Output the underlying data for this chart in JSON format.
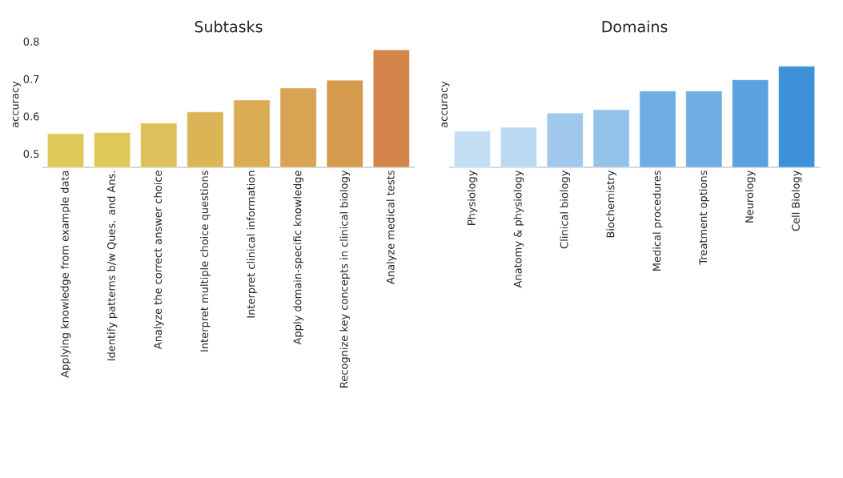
{
  "chart_data": [
    {
      "type": "bar",
      "title": "Subtasks",
      "ylabel": "accuracy",
      "categories": [
        "Applying knowledge from example data",
        "Identify patterns b/w Ques. and Ans.",
        "Analyze the correct answer choice",
        "Interpret multiple choice questions",
        "Interpret clinical information",
        "Apply domain-specific knowledge",
        "Recognize key concepts in clinical biology",
        "Analyze medical tests"
      ],
      "values": [
        0.554,
        0.557,
        0.582,
        0.612,
        0.644,
        0.676,
        0.697,
        0.778
      ],
      "colors": [
        "#e0c858",
        "#e0c858",
        "#ddc059",
        "#dbb555",
        "#daad54",
        "#d8a352",
        "#d69a4e",
        "#d4854b"
      ],
      "ylim": [
        0.464,
        0.8
      ],
      "yticks": [
        0.5,
        0.6,
        0.7,
        0.8
      ]
    },
    {
      "type": "bar",
      "title": "Domains",
      "ylabel": "accuracy",
      "categories": [
        "Physiology",
        "Anatomy & physiology",
        "Clinical biology",
        "Biochemistry",
        "Medical procedures",
        "Treatment options",
        "Neurology",
        "Cell Biology"
      ],
      "values": [
        0.561,
        0.571,
        0.609,
        0.618,
        0.668,
        0.668,
        0.698,
        0.734
      ],
      "colors": [
        "#c3ddf2",
        "#badaf1",
        "#9fc8ec",
        "#93c3e9",
        "#6eaee2",
        "#6eaee2",
        "#5aa1de",
        "#3d91d8"
      ],
      "ylim": [
        0.464,
        0.8
      ],
      "tick_labels": "x"
    }
  ]
}
